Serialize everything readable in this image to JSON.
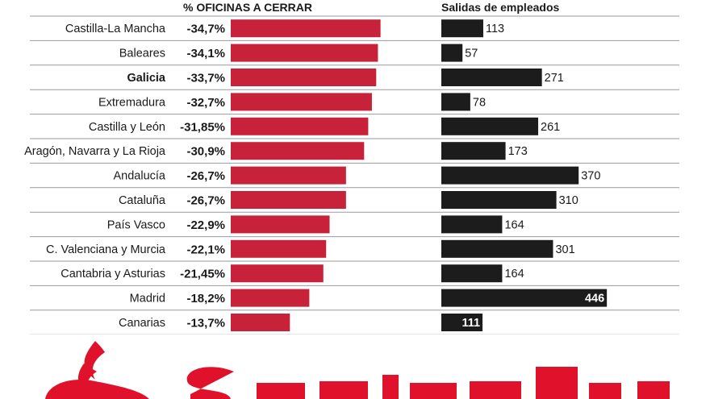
{
  "headers": {
    "offices": "% OFICINAS A CERRAR",
    "employees": "Salidas de empleados"
  },
  "colors": {
    "offices_bar": "#c8223a",
    "employees_bar": "#1c1c1c",
    "rule": "#9a9a9a",
    "brand": "#e0122b"
  },
  "brand": {
    "name": "Santander",
    "icon": "santander-flame-icon"
  },
  "chart_data": {
    "type": "bar",
    "orientation": "horizontal",
    "categories": [
      "Castilla-La Mancha",
      "Baleares",
      "Galicia",
      "Extremadura",
      "Castilla y León",
      "Aragón, Navarra y La Rioja",
      "Andalucía",
      "Cataluña",
      "País Vasco",
      "C. Valenciana y Murcia",
      "Cantabria y Asturias",
      "Madrid",
      "Canarias"
    ],
    "highlight": [
      "Galicia"
    ],
    "series": [
      {
        "name": "% OFICINAS A CERRAR",
        "values": [
          -34.7,
          -34.1,
          -33.7,
          -32.7,
          -31.85,
          -30.9,
          -26.7,
          -26.7,
          -22.9,
          -22.1,
          -21.45,
          -18.2,
          -13.7
        ],
        "labels": [
          "-34,7%",
          "-34,1%",
          "-33,7%",
          "-32,7%",
          "-31,85%",
          "-30,9%",
          "-26,7%",
          "-26,7%",
          "-22,9%",
          "-22,1%",
          "-21,45%",
          "-18,2%",
          "-13,7%"
        ]
      },
      {
        "name": "Salidas de empleados",
        "values": [
          113,
          57,
          271,
          78,
          261,
          173,
          370,
          310,
          164,
          301,
          164,
          446,
          111
        ],
        "labels": [
          "113",
          "57",
          "271",
          "78",
          "261",
          "173",
          "370",
          "310",
          "164",
          "301",
          "164",
          "446",
          "111"
        ],
        "inside_label": [
          "Madrid",
          "Canarias"
        ]
      }
    ],
    "title": "",
    "xlabel": "",
    "ylabel": ""
  }
}
